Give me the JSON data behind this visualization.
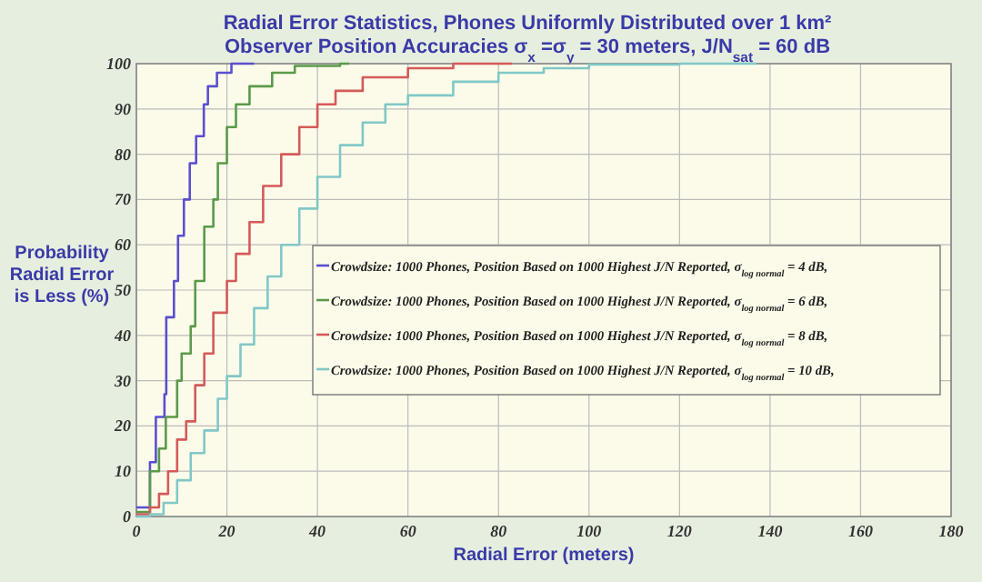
{
  "chart_data": {
    "type": "step",
    "title": "Radial Error Statistics, Phones Uniformly Distributed over 1 km²",
    "subtitle": "Observer Position Accuracies σ$_{x}$ =σ$_{y}$ = 30 meters, J/N$_{sat}$ = 60 dB",
    "xlabel": "Radial Error (meters)",
    "ylabel": "Probability Radial Error is Less (%)",
    "xlim": [
      0,
      180
    ],
    "xticks": [
      0,
      20,
      40,
      60,
      80,
      100,
      120,
      140,
      160,
      180
    ],
    "ylim": [
      0,
      100
    ],
    "yticks": [
      0,
      10,
      20,
      30,
      40,
      50,
      60,
      70,
      80,
      90,
      100
    ],
    "grid": true,
    "legend": "right",
    "series": [
      {
        "name": "Crowdsize: 1000 Phones, Position Based on 1000 Highest J/N Reported, σ$_{log normal}$ = 4 dB,",
        "color": "#5a4fcf",
        "x": [
          0,
          3,
          4.3,
          6.2,
          6.6,
          8.3,
          9.2,
          10.5,
          11.8,
          13.2,
          14.9,
          15.8,
          17.8,
          21,
          26
        ],
        "values": [
          2,
          12,
          22,
          27,
          44,
          52,
          62,
          70,
          78,
          84,
          91,
          95,
          98,
          100,
          100
        ]
      },
      {
        "name": "Crowdsize: 1000 Phones, Position Based on 1000 Highest J/N Reported, σ$_{log normal}$ = 6 dB,",
        "color": "#5a9a4a",
        "x": [
          0,
          3,
          5,
          6.5,
          9,
          10,
          12,
          13,
          15,
          17,
          18,
          20,
          22,
          25,
          30,
          35,
          45,
          47
        ],
        "values": [
          1,
          10,
          15,
          22,
          30,
          36,
          42,
          52,
          64,
          70,
          78,
          86,
          91,
          95,
          98,
          99.5,
          100,
          100
        ]
      },
      {
        "name": "Crowdsize: 1000 Phones, Position Based on 1000 Highest J/N Reported, σ$_{log normal}$ = 8 dB,",
        "color": "#d45a5a",
        "x": [
          0,
          3,
          5,
          7,
          9,
          11,
          13,
          15,
          17,
          20,
          22,
          25,
          28,
          32,
          36,
          40,
          44,
          50,
          60,
          70,
          83
        ],
        "values": [
          0.5,
          2,
          5,
          10,
          17,
          21,
          29,
          36,
          45,
          52,
          58,
          65,
          73,
          80,
          86,
          91,
          94,
          97,
          99,
          100,
          100
        ]
      },
      {
        "name": "Crowdsize: 1000 Phones, Position Based on 1000 Highest J/N Reported, σ$_{log normal}$ = 10 dB,",
        "color": "#80c8c8",
        "x": [
          0,
          3,
          6,
          9,
          12,
          15,
          18,
          20,
          23,
          26,
          29,
          32,
          36,
          40,
          45,
          50,
          55,
          60,
          70,
          80,
          90,
          100,
          120,
          137
        ],
        "values": [
          0,
          0.5,
          3,
          8,
          14,
          19,
          26,
          31,
          38,
          46,
          53,
          60,
          68,
          75,
          82,
          87,
          91,
          93,
          96,
          98,
          99,
          99.8,
          100,
          100
        ]
      }
    ]
  }
}
